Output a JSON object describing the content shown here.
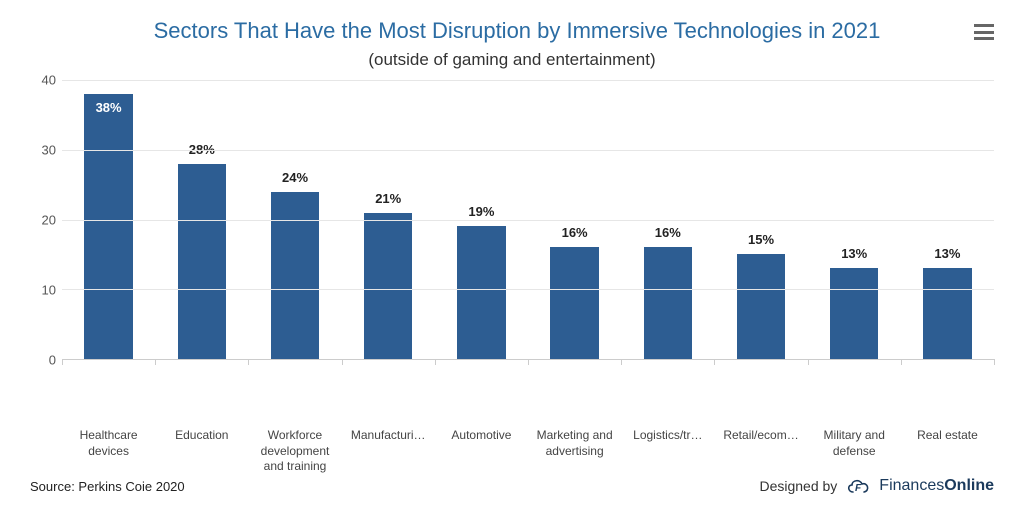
{
  "chart": {
    "type": "bar",
    "title": "Sectors That Have the Most Disruption by Immersive Technologies in 2021",
    "subtitle": "(outside of gaming and entertainment)",
    "title_color": "#2b6ca3",
    "title_fontsize": 22,
    "subtitle_fontsize": 17,
    "subtitle_color": "#333333",
    "background_color": "#ffffff",
    "bar_color": "#2d5d92",
    "grid_color": "#e6e6e6",
    "axis_color": "#cccccc",
    "ylim": [
      0,
      40
    ],
    "ytick_step": 10,
    "yticks": [
      0,
      10,
      20,
      30,
      40
    ],
    "bar_width": 0.52,
    "label_fontsize": 13,
    "xlabel_fontsize": 12,
    "categories": [
      "Healthcare devices",
      "Education",
      "Workforce development and training",
      "Manufacturi…",
      "Automotive",
      "Marketing and advertising",
      "Logistics/tr…",
      "Retail/ecom…",
      "Military and defense",
      "Real estate"
    ],
    "values": [
      38,
      28,
      24,
      21,
      19,
      16,
      16,
      15,
      13,
      13
    ],
    "value_labels": [
      "38%",
      "28%",
      "24%",
      "21%",
      "19%",
      "16%",
      "16%",
      "15%",
      "13%",
      "13%"
    ],
    "first_label_inside": true,
    "first_label_color": "#ffffff"
  },
  "footer": {
    "source": "Source: Perkins Coie 2020",
    "designed_by": "Designed by",
    "brand_thin": "Finances",
    "brand_bold": "Online"
  }
}
